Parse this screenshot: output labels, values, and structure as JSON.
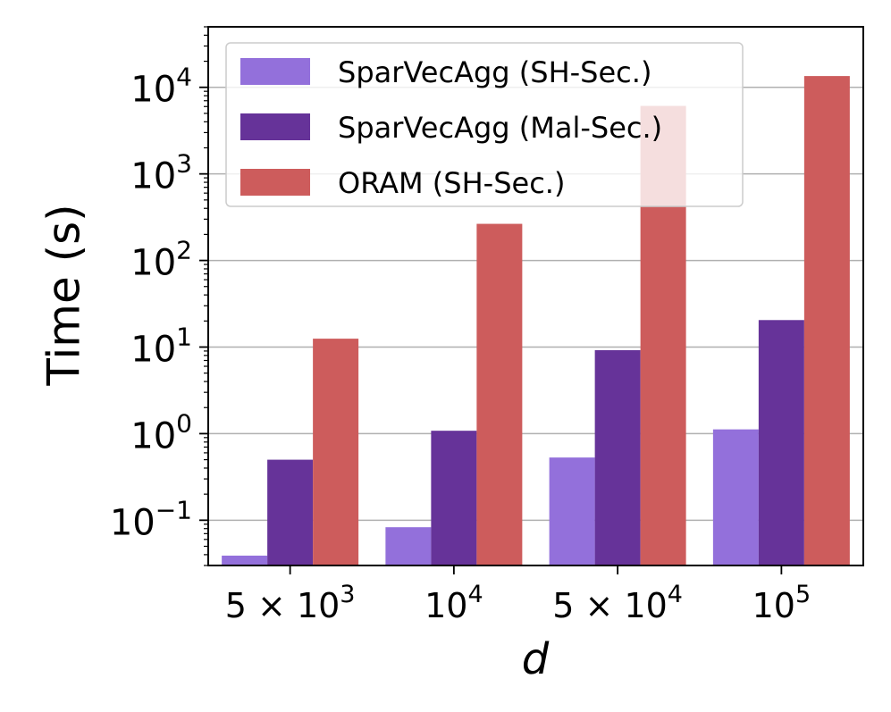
{
  "chart_data": {
    "type": "bar",
    "title": "",
    "xlabel": "d",
    "ylabel": "Time (s)",
    "yscale": "log",
    "ylim": [
      0.03,
      50000
    ],
    "grid": true,
    "legend_position": "top-left",
    "categories": [
      "5×10^3",
      "10^4",
      "5×10^4",
      "10^5"
    ],
    "category_tick_labels": [
      {
        "base": "5 × 10",
        "exp": "3"
      },
      {
        "base": "10",
        "exp": "4"
      },
      {
        "base": "5 × 10",
        "exp": "4"
      },
      {
        "base": "10",
        "exp": "5"
      }
    ],
    "y_ticks": [
      {
        "value": 0.1,
        "base": "10",
        "exp": "−1"
      },
      {
        "value": 1,
        "base": "10",
        "exp": "0"
      },
      {
        "value": 10,
        "base": "10",
        "exp": "1"
      },
      {
        "value": 100,
        "base": "10",
        "exp": "2"
      },
      {
        "value": 1000,
        "base": "10",
        "exp": "3"
      },
      {
        "value": 10000,
        "base": "10",
        "exp": "4"
      }
    ],
    "series": [
      {
        "name": "SparVecAgg (SH-Sec.)",
        "color": "#9370db",
        "values": [
          0.039,
          0.083,
          0.53,
          1.12
        ]
      },
      {
        "name": "SparVecAgg (Mal-Sec.)",
        "color": "#663399",
        "values": [
          0.5,
          1.08,
          9.2,
          20.5
        ]
      },
      {
        "name": "ORAM (SH-Sec.)",
        "color": "#cd5c5c",
        "values": [
          12.5,
          265,
          6100,
          13500
        ]
      }
    ]
  }
}
